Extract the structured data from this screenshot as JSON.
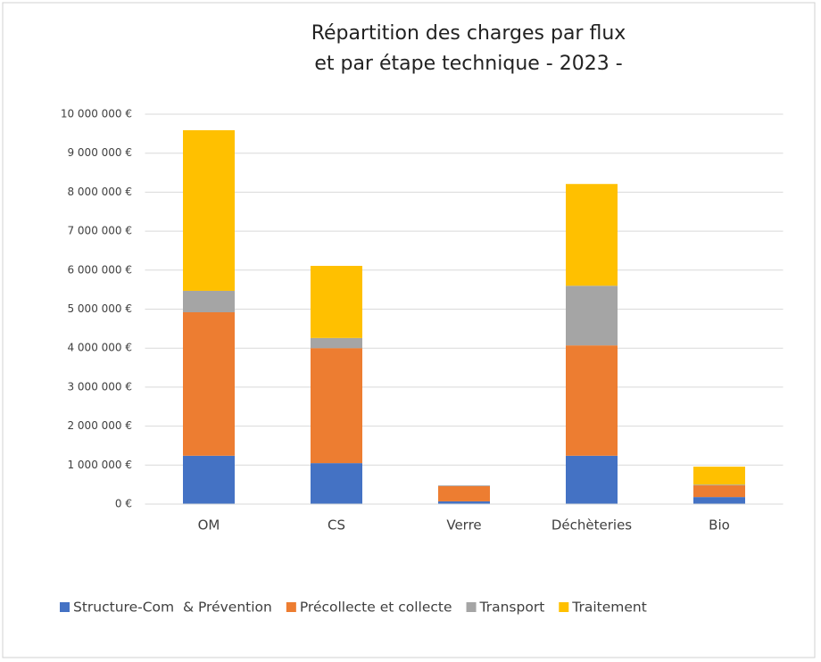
{
  "chart_data": {
    "type": "bar",
    "stacked": true,
    "title": [
      "Répartition des charges par flux",
      "et par étape technique - 2023 -"
    ],
    "categories": [
      "OM",
      "CS",
      "Verre",
      "Déchèteries",
      "Bio"
    ],
    "series": [
      {
        "name": "Structure-Com  & Prévention",
        "color": "#4472c4",
        "values": [
          1240000,
          1050000,
          70000,
          1240000,
          180000
        ]
      },
      {
        "name": "Précollecte et collecte",
        "color": "#ed7d31",
        "values": [
          3680000,
          2950000,
          390000,
          2830000,
          300000
        ]
      },
      {
        "name": "Transport",
        "color": "#a5a5a5",
        "values": [
          550000,
          260000,
          20000,
          1530000,
          20000
        ]
      },
      {
        "name": "Traitement",
        "color": "#ffc000",
        "values": [
          4120000,
          1850000,
          0,
          2610000,
          460000
        ]
      }
    ],
    "ylim": [
      0,
      10000000
    ],
    "yticks": [
      {
        "value": 0,
        "label": "0 €"
      },
      {
        "value": 1000000,
        "label": "1 000 000 €"
      },
      {
        "value": 2000000,
        "label": "2 000 000 €"
      },
      {
        "value": 3000000,
        "label": "3 000 000 €"
      },
      {
        "value": 4000000,
        "label": "4 000 000 €"
      },
      {
        "value": 5000000,
        "label": "5 000 000 €"
      },
      {
        "value": 6000000,
        "label": "6 000 000 €"
      },
      {
        "value": 7000000,
        "label": "7 000 000 €"
      },
      {
        "value": 8000000,
        "label": "8 000 000 €"
      },
      {
        "value": 9000000,
        "label": "9 000 000 €"
      },
      {
        "value": 10000000,
        "label": "10 000 000 €"
      }
    ],
    "grid": true,
    "legend": "bottom"
  }
}
